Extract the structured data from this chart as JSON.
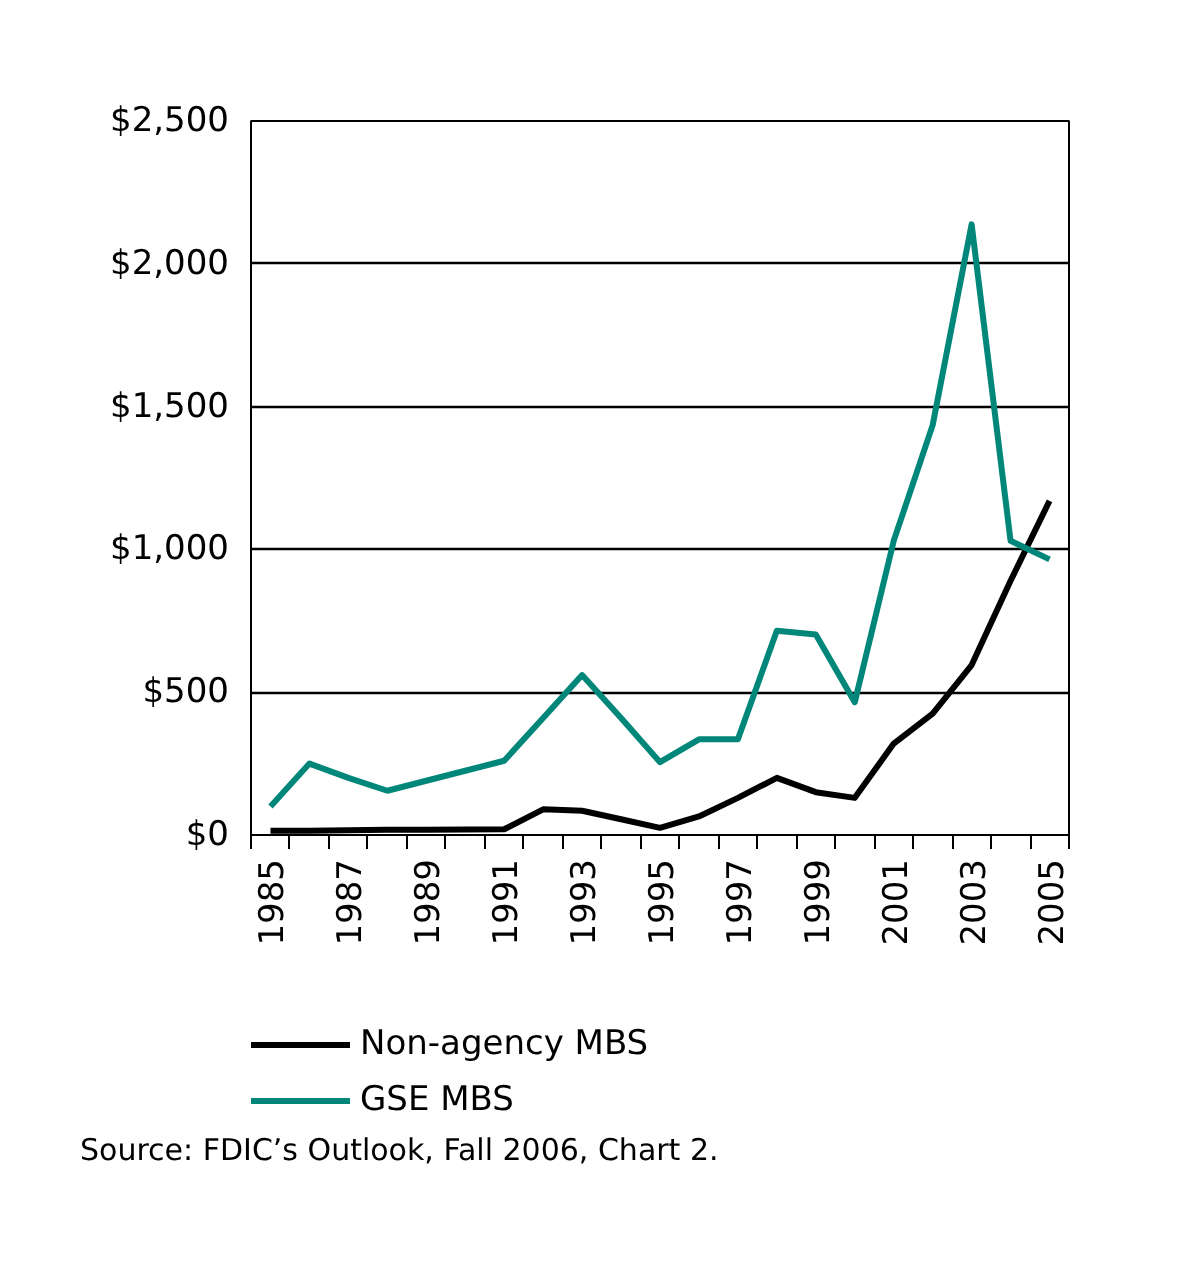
{
  "chart_data": {
    "type": "line",
    "categories": [
      "1985",
      null,
      "1987",
      null,
      "1989",
      null,
      "1991",
      null,
      "1993",
      null,
      "1995",
      null,
      "1997",
      null,
      "1999",
      null,
      "2001",
      null,
      "2003",
      null,
      "2005"
    ],
    "series": [
      {
        "name": "Non-agency MBS",
        "color": "#000000",
        "values": [
          15,
          15,
          17,
          18,
          18,
          19,
          20,
          90,
          85,
          55,
          25,
          65,
          130,
          200,
          150,
          130,
          320,
          425,
          595,
          890,
          1170
        ]
      },
      {
        "name": "GSE MBS",
        "color": "#00877a",
        "values": [
          100,
          250,
          200,
          155,
          190,
          225,
          260,
          410,
          560,
          410,
          255,
          335,
          335,
          715,
          702,
          465,
          1030,
          1435,
          2138,
          1030,
          965
        ]
      }
    ],
    "ylim": [
      0,
      2500
    ],
    "yticks": [
      {
        "value": 0,
        "label": "$0"
      },
      {
        "value": 500,
        "label": "$500"
      },
      {
        "value": 1000,
        "label": "$1,000"
      },
      {
        "value": 1500,
        "label": "$1,500"
      },
      {
        "value": 2000,
        "label": "$2,000"
      },
      {
        "value": 2500,
        "label": "$2,500"
      }
    ],
    "grid": "y",
    "legend": "bottom",
    "marker": "none",
    "line_style": "solid",
    "annotations": [
      "Source: FDIC’s Outlook, Fall 2006, Chart 2."
    ]
  }
}
